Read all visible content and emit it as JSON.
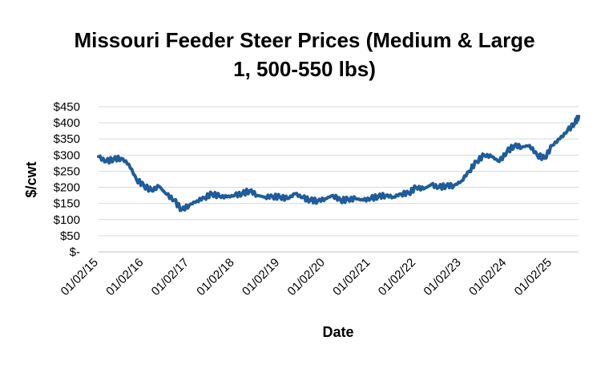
{
  "chart_data": {
    "type": "line",
    "title": "Missouri Feeder Steer Prices (Medium & Large 1, 500-550 lbs)",
    "xlabel": "Date",
    "ylabel": "$/cwt",
    "ylim": [
      0,
      450
    ],
    "y_ticks": [
      "$-",
      "$50",
      "$100",
      "$150",
      "$200",
      "$250",
      "$300",
      "$350",
      "$400",
      "$450"
    ],
    "x_ticks": [
      "01/02/15",
      "01/02/16",
      "01/02/17",
      "01/02/18",
      "01/02/19",
      "01/02/20",
      "01/02/21",
      "01/02/22",
      "01/02/23",
      "01/02/24",
      "01/02/25"
    ],
    "grid": "horizontal",
    "legend": "none",
    "line_color": "#1F5C99",
    "series": [
      {
        "x": [
          "2015-01",
          "2015-03",
          "2015-05",
          "2015-07",
          "2015-09",
          "2015-11",
          "2016-01",
          "2016-03",
          "2016-05",
          "2016-07",
          "2016-09",
          "2016-11",
          "2017-01",
          "2017-03",
          "2017-05",
          "2017-07",
          "2017-09",
          "2017-11",
          "2018-01",
          "2018-03",
          "2018-05",
          "2018-07",
          "2018-09",
          "2018-11",
          "2019-01",
          "2019-03",
          "2019-05",
          "2019-07",
          "2019-09",
          "2019-11",
          "2020-01",
          "2020-03",
          "2020-05",
          "2020-07",
          "2020-09",
          "2020-11",
          "2021-01",
          "2021-03",
          "2021-05",
          "2021-07",
          "2021-09",
          "2021-11",
          "2022-01",
          "2022-03",
          "2022-05",
          "2022-07",
          "2022-09",
          "2022-11",
          "2023-01",
          "2023-03",
          "2023-05",
          "2023-07",
          "2023-09",
          "2023-11",
          "2024-01",
          "2024-03",
          "2024-05",
          "2024-07",
          "2024-09",
          "2024-11",
          "2025-01",
          "2025-03",
          "2025-05",
          "2025-07",
          "2025-08"
        ],
        "values": [
          295,
          280,
          288,
          290,
          272,
          225,
          205,
          190,
          203,
          178,
          160,
          130,
          145,
          158,
          168,
          180,
          172,
          170,
          175,
          180,
          190,
          175,
          170,
          172,
          170,
          165,
          180,
          168,
          160,
          158,
          165,
          175,
          160,
          162,
          165,
          160,
          165,
          172,
          175,
          170,
          180,
          182,
          200,
          195,
          208,
          200,
          205,
          205,
          220,
          250,
          280,
          300,
          295,
          280,
          310,
          330,
          325,
          330,
          300,
          290,
          330,
          350,
          375,
          400,
          420
        ]
      }
    ]
  }
}
